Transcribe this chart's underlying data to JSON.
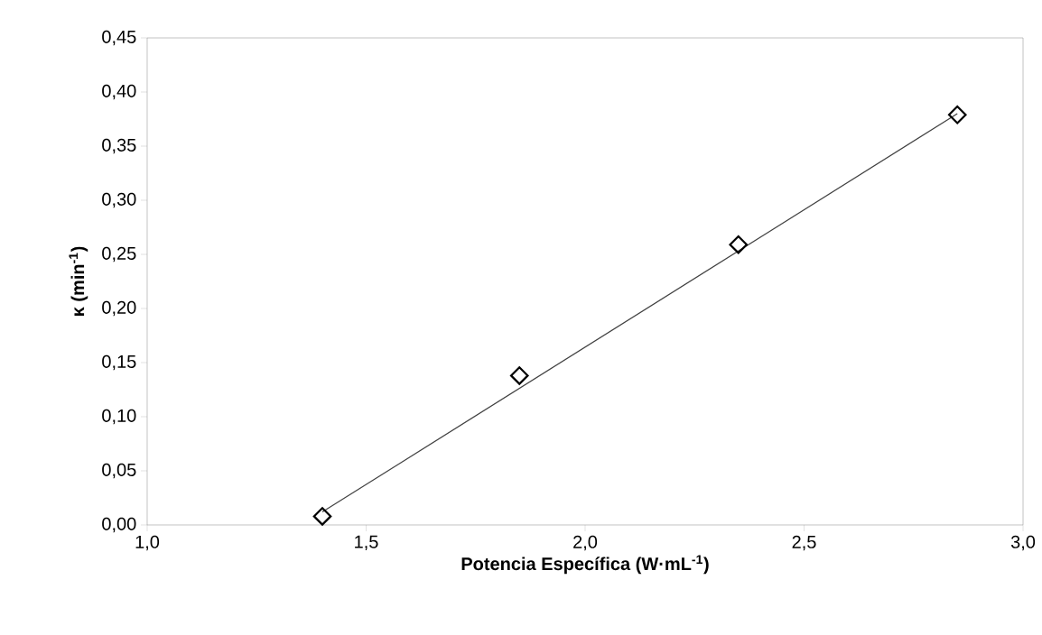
{
  "chart_data": {
    "type": "scatter",
    "xlabel": "Potencia Específica (W·mL$^{-1}$)",
    "ylabel": "κ (min$^{-1}$)",
    "xlim": [
      1.0,
      3.0
    ],
    "ylim": [
      0,
      0.45
    ],
    "xticks": [
      {
        "value": 1.0,
        "label": "1,0"
      },
      {
        "value": 1.5,
        "label": "1,5"
      },
      {
        "value": 2.0,
        "label": "2,0"
      },
      {
        "value": 2.5,
        "label": "2,5"
      },
      {
        "value": 3.0,
        "label": "3,0"
      }
    ],
    "yticks": [
      {
        "value": 0,
        "label": "0,00"
      },
      {
        "value": 0.05,
        "label": "0,05"
      },
      {
        "value": 0.1,
        "label": "0,10"
      },
      {
        "value": 0.15,
        "label": "0,15"
      },
      {
        "value": 0.2,
        "label": "0,20"
      },
      {
        "value": 0.25,
        "label": "0,25"
      },
      {
        "value": 0.3,
        "label": "0,30"
      },
      {
        "value": 0.35,
        "label": "0,35"
      },
      {
        "value": 0.4,
        "label": "0,40"
      },
      {
        "value": 0.45,
        "label": "0,45"
      }
    ],
    "grid": false,
    "series": [
      {
        "marker": "diamond",
        "color": "#000000",
        "x": [
          1.4,
          1.85,
          2.35,
          2.85
        ],
        "values": [
          0.008,
          0.138,
          0.259,
          0.379
        ]
      },
      {
        "type": "line",
        "marker": "none",
        "line_style": "solid",
        "color": "#404040",
        "x": [
          1.4,
          2.85
        ],
        "values": [
          0.012,
          0.38
        ]
      }
    ]
  }
}
